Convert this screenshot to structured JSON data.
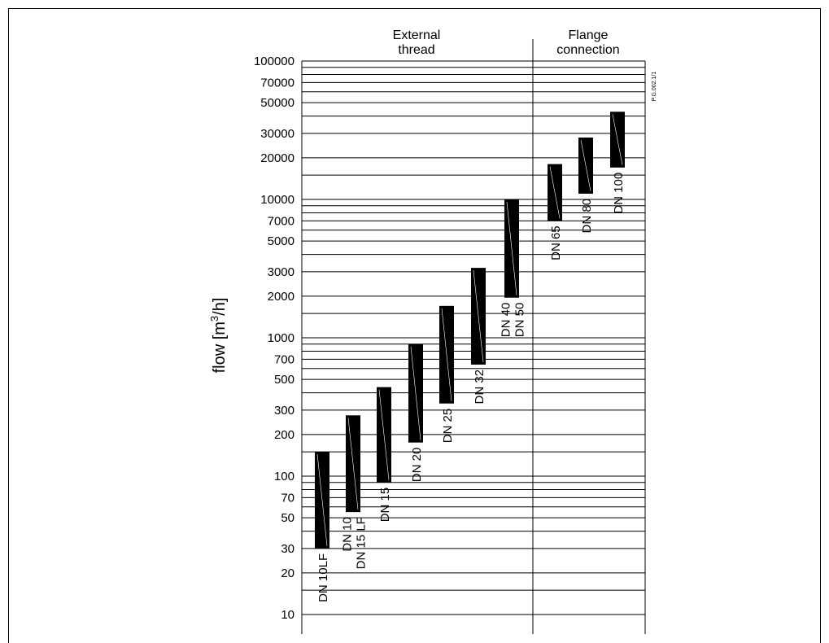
{
  "chart_data": {
    "type": "bar",
    "title": "",
    "xlabel": "",
    "ylabel": "flow [m³/h]",
    "ylabel_parts": {
      "pre": "flow [m",
      "sup": "3",
      "post": "/h]"
    },
    "y_scale": "log",
    "ylim": [
      10,
      100000
    ],
    "y_ticks": [
      {
        "value": 10,
        "label": "10"
      },
      {
        "value": 20,
        "label": "20"
      },
      {
        "value": 30,
        "label": "30"
      },
      {
        "value": 50,
        "label": "50"
      },
      {
        "value": 70,
        "label": "70"
      },
      {
        "value": 100,
        "label": "100"
      },
      {
        "value": 200,
        "label": "200"
      },
      {
        "value": 300,
        "label": "300"
      },
      {
        "value": 500,
        "label": "500"
      },
      {
        "value": 700,
        "label": "700"
      },
      {
        "value": 1000,
        "label": "1000"
      },
      {
        "value": 2000,
        "label": "2000"
      },
      {
        "value": 3000,
        "label": "3000"
      },
      {
        "value": 5000,
        "label": "5000"
      },
      {
        "value": 7000,
        "label": "7000"
      },
      {
        "value": 10000,
        "label": "10000"
      },
      {
        "value": 20000,
        "label": "20000"
      },
      {
        "value": 30000,
        "label": "30000"
      },
      {
        "value": 50000,
        "label": "50000"
      },
      {
        "value": 70000,
        "label": "70000"
      },
      {
        "value": 100000,
        "label": "100000"
      }
    ],
    "grid": true,
    "groups": [
      {
        "title_lines": [
          "External",
          "thread"
        ],
        "start": 0,
        "count": 7
      },
      {
        "title_lines": [
          "Flange",
          "connection"
        ],
        "start": 7,
        "count": 3
      }
    ],
    "bars": [
      {
        "label_lines": [
          "DN 10LF"
        ],
        "min": 30,
        "max": 150
      },
      {
        "label_lines": [
          "DN 10",
          "DN 15 LF"
        ],
        "min": 55,
        "max": 275
      },
      {
        "label_lines": [
          "DN 15"
        ],
        "min": 90,
        "max": 440
      },
      {
        "label_lines": [
          "DN 20"
        ],
        "min": 175,
        "max": 900
      },
      {
        "label_lines": [
          "DN 25"
        ],
        "min": 335,
        "max": 1700
      },
      {
        "label_lines": [
          "DN 32"
        ],
        "min": 640,
        "max": 3200
      },
      {
        "label_lines": [
          "DN 40",
          "DN 50"
        ],
        "min": 1950,
        "max": 10000
      },
      {
        "label_lines": [
          "DN 65"
        ],
        "min": 7000,
        "max": 18000
      },
      {
        "label_lines": [
          "DN 80"
        ],
        "min": 11000,
        "max": 28000
      },
      {
        "label_lines": [
          "DN 100"
        ],
        "min": 17000,
        "max": 43000
      }
    ],
    "code": "P.G.002.1/1",
    "colors": {
      "bar": "#000000",
      "grid": "#000000",
      "background": "#ffffff"
    }
  }
}
